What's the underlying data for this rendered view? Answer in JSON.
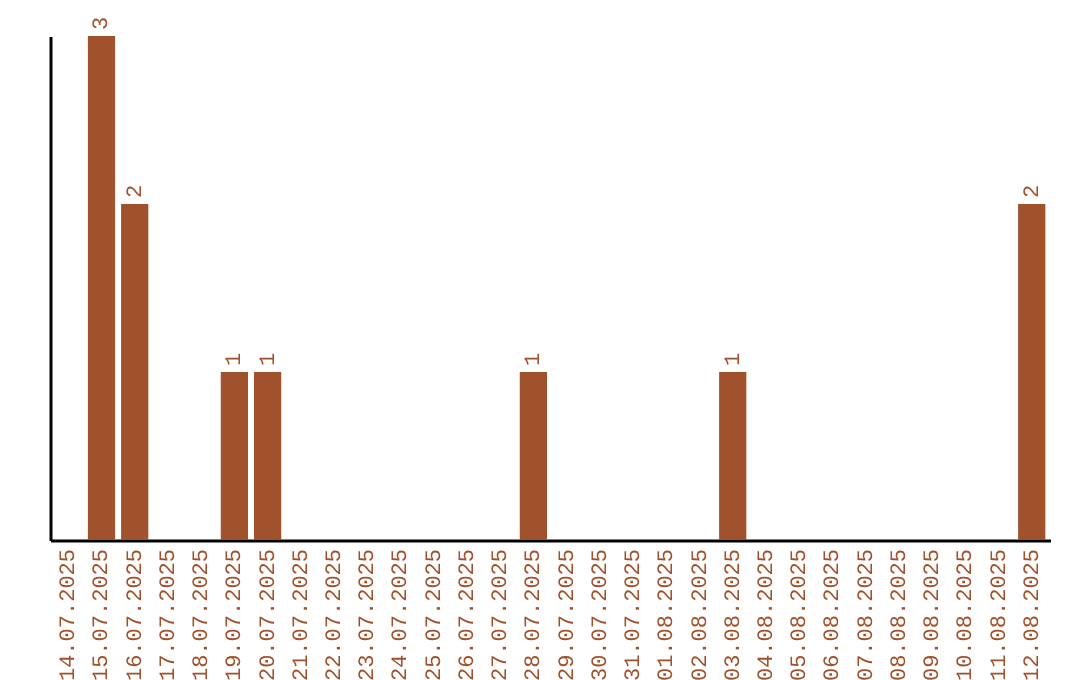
{
  "chart_data": {
    "type": "bar",
    "categories": [
      "14.07.2025",
      "15.07.2025",
      "16.07.2025",
      "17.07.2025",
      "18.07.2025",
      "19.07.2025",
      "20.07.2025",
      "21.07.2025",
      "22.07.2025",
      "23.07.2025",
      "24.07.2025",
      "25.07.2025",
      "26.07.2025",
      "27.07.2025",
      "28.07.2025",
      "29.07.2025",
      "30.07.2025",
      "31.07.2025",
      "01.08.2025",
      "02.08.2025",
      "03.08.2025",
      "04.08.2025",
      "05.08.2025",
      "06.08.2025",
      "07.08.2025",
      "08.08.2025",
      "09.08.2025",
      "10.08.2025",
      "11.08.2025",
      "12.08.2025"
    ],
    "values": [
      0,
      3,
      2,
      0,
      0,
      1,
      1,
      0,
      0,
      0,
      0,
      0,
      0,
      0,
      1,
      0,
      0,
      0,
      0,
      0,
      1,
      0,
      0,
      0,
      0,
      0,
      0,
      0,
      0,
      2
    ],
    "value_labels": [
      null,
      "3",
      "2",
      null,
      null,
      "1",
      "1",
      null,
      null,
      null,
      null,
      null,
      null,
      null,
      "1",
      null,
      null,
      null,
      null,
      null,
      "1",
      null,
      null,
      null,
      null,
      null,
      null,
      null,
      null,
      "2"
    ],
    "color": "#a0522d",
    "tick_labels": "x"
  }
}
